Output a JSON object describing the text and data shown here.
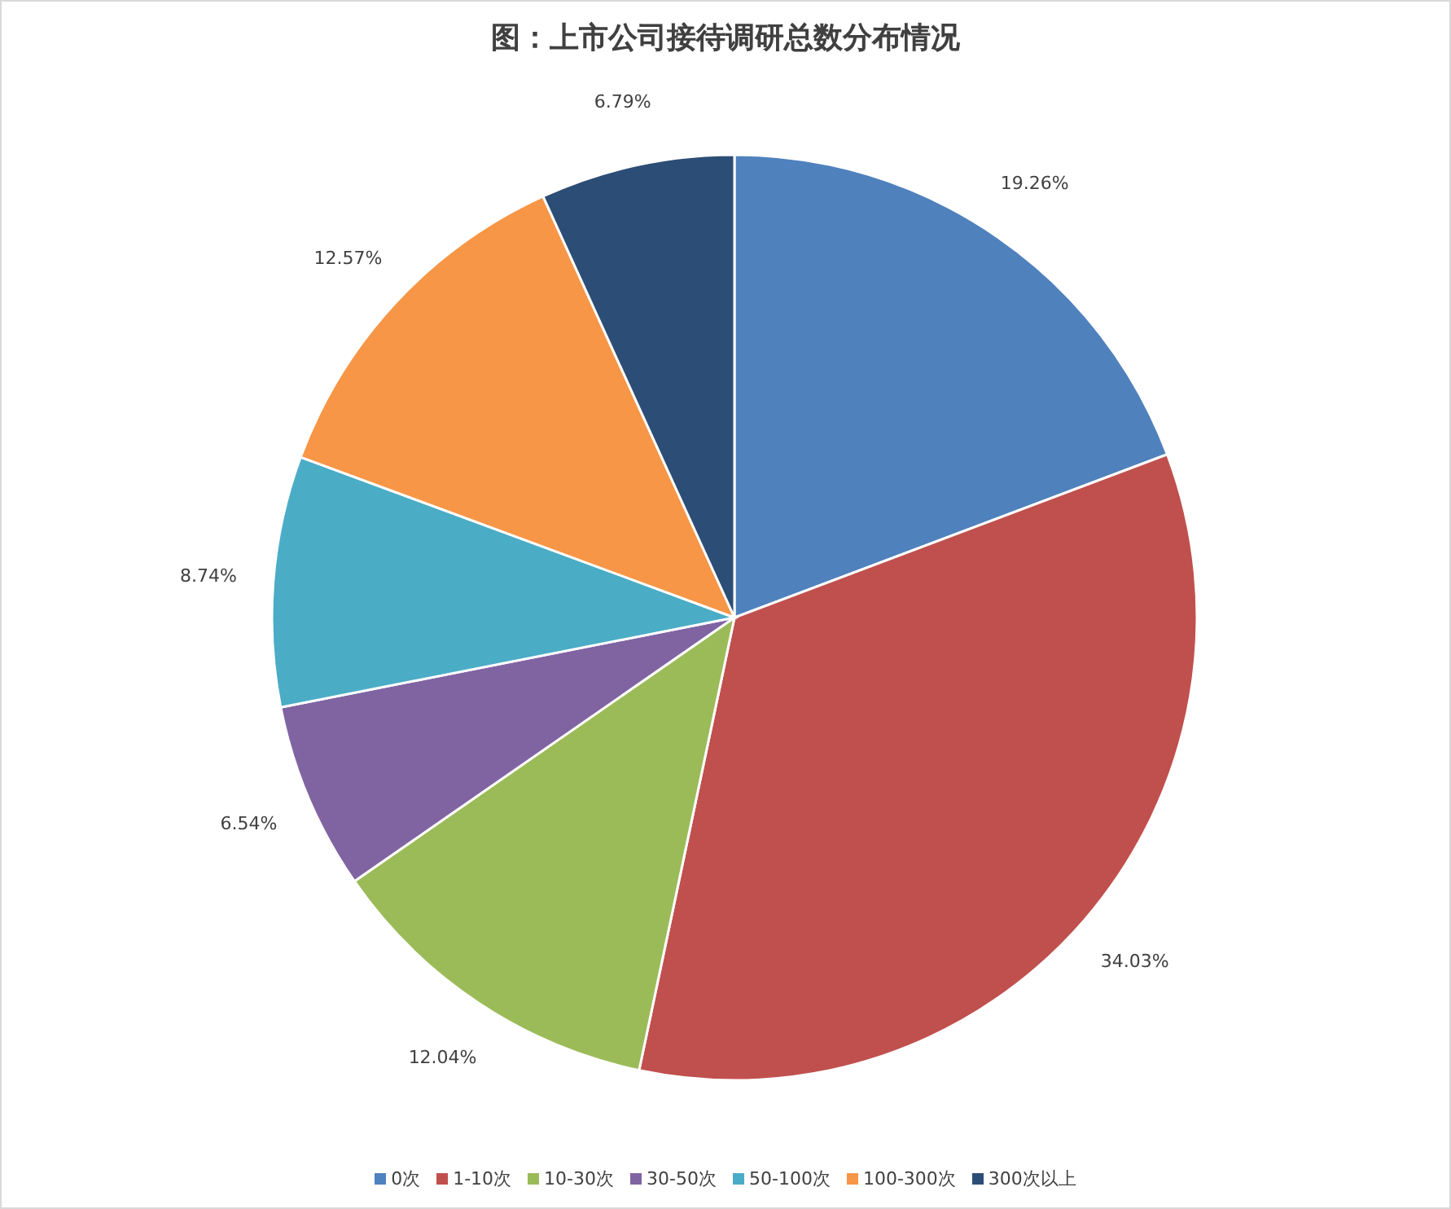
{
  "chart_data": {
    "type": "pie",
    "title": "图：上市公司接待调研总数分布情况",
    "categories": [
      "0次",
      "1-10次",
      "10-30次",
      "30-50次",
      "50-100次",
      "100-300次",
      "300次以上"
    ],
    "values": [
      19.26,
      34.03,
      12.04,
      6.54,
      8.74,
      12.57,
      6.79
    ],
    "value_labels": [
      "19.26%",
      "34.03%",
      "12.04%",
      "6.54%",
      "8.74%",
      "12.57%",
      "6.79%"
    ],
    "colors": [
      "#4f81bd",
      "#c0504d",
      "#9bbb59",
      "#8064a2",
      "#4bacc6",
      "#f79646",
      "#2c4d75"
    ],
    "legend": "bottom"
  }
}
